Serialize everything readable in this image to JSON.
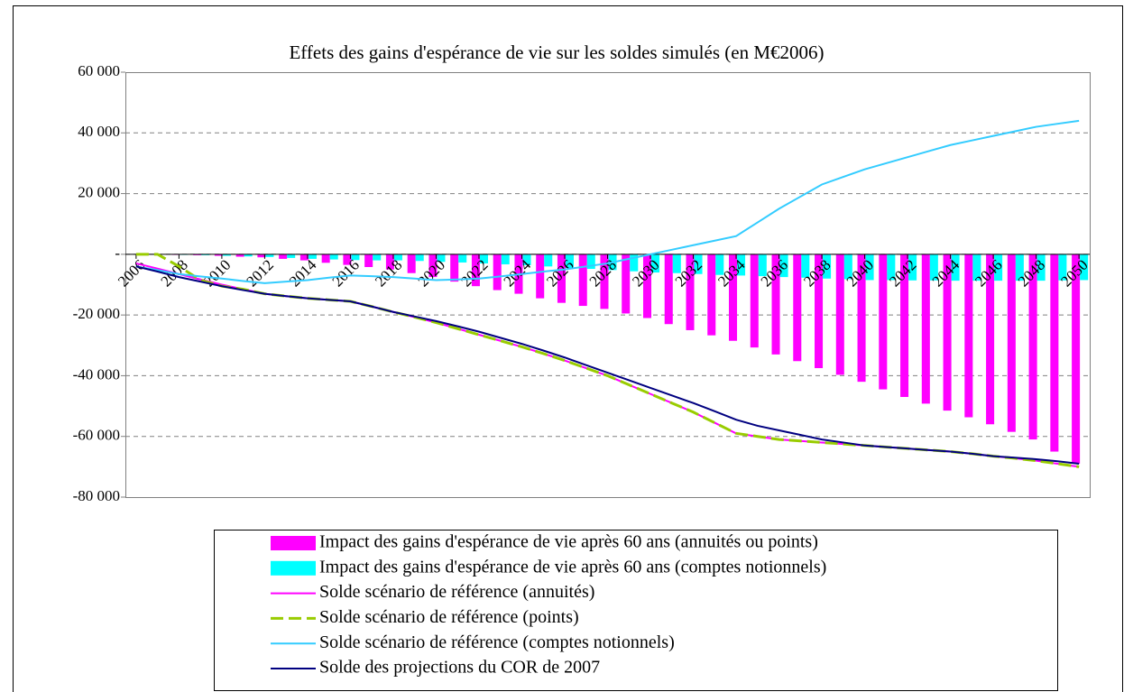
{
  "chart_data": {
    "type": "bar",
    "title": "Effets des gains d'espérance de vie sur les soldes simulés (en M€2006)",
    "categories": [
      "2006",
      null,
      "2008",
      null,
      "2010",
      null,
      "2012",
      null,
      "2014",
      null,
      "2016",
      null,
      "2018",
      null,
      "2020",
      null,
      "2022",
      null,
      "2024",
      null,
      "2026",
      null,
      "2028",
      null,
      "2030",
      null,
      "2032",
      null,
      "2034",
      null,
      "2036",
      null,
      "2038",
      null,
      "2040",
      null,
      "2042",
      null,
      "2044",
      null,
      "2046",
      null,
      "2048",
      null,
      "2050"
    ],
    "ylim": [
      -80000,
      60000
    ],
    "yticks": [
      {
        "value": -80000,
        "label": "-80 000"
      },
      {
        "value": -60000,
        "label": "-60 000"
      },
      {
        "value": -40000,
        "label": "-40 000"
      },
      {
        "value": -20000,
        "label": "-20 000"
      },
      {
        "value": 0,
        "label": "-"
      },
      {
        "value": 20000,
        "label": "20 000"
      },
      {
        "value": 40000,
        "label": "40 000"
      },
      {
        "value": 60000,
        "label": "60 000"
      }
    ],
    "grid": true,
    "series": [
      {
        "name": "Impact des gains d'espérance de vie après 60 ans (annuités ou points)",
        "type": "bar",
        "color": "#ff00ff",
        "values": [
          0,
          0,
          -200,
          -300,
          -500,
          -800,
          -1000,
          -1500,
          -2000,
          -2800,
          -3500,
          -4200,
          -5000,
          -6200,
          -7500,
          -9000,
          -10500,
          -11800,
          -13000,
          -14500,
          -16000,
          -17000,
          -18000,
          -19500,
          -21000,
          -23000,
          -25000,
          -26700,
          -28500,
          -30700,
          -33000,
          -35200,
          -37500,
          -39700,
          -42000,
          -44500,
          -47000,
          -49200,
          -51500,
          -53700,
          -56000,
          -58500,
          -61000,
          -65000,
          -69000
        ]
      },
      {
        "name": "Impact des gains d'espérance de vie après 60 ans (comptes notionnels)",
        "type": "bar",
        "color": "#00ffff",
        "values": [
          0,
          0,
          -200,
          -300,
          -500,
          -700,
          -900,
          -1200,
          -1500,
          -1700,
          -1900,
          -2000,
          -2000,
          -2200,
          -2500,
          -2700,
          -3000,
          -3300,
          -3600,
          -4000,
          -4500,
          -4800,
          -5200,
          -5600,
          -6000,
          -6200,
          -6500,
          -6800,
          -7000,
          -7200,
          -7500,
          -7700,
          -8000,
          -8200,
          -8500,
          -8500,
          -8600,
          -8600,
          -8700,
          -8700,
          -8700,
          -8700,
          -8700,
          -8600,
          -8500
        ]
      },
      {
        "name": "Solde scénario de référence (annuités)",
        "type": "line",
        "color": "#ff00ff",
        "dashed": false,
        "values": [
          -3000,
          -4700,
          -6500,
          -8300,
          -10000,
          -11500,
          -13000,
          -13800,
          -14500,
          -15000,
          -15500,
          -17200,
          -19000,
          -20700,
          -22500,
          -24500,
          -26500,
          -28500,
          -30500,
          -32700,
          -35000,
          -37500,
          -40000,
          -43000,
          -46000,
          -49000,
          -52000,
          -55500,
          -59000,
          -60000,
          -61000,
          -61500,
          -62000,
          -62500,
          -63000,
          -63500,
          -64000,
          -64500,
          -65000,
          -65700,
          -66500,
          -67200,
          -68000,
          -69000,
          -70000
        ]
      },
      {
        "name": "Solde scénario de référence (points)",
        "type": "line",
        "color": "#99cc00",
        "dashed": true,
        "values": [
          0,
          0,
          -4000,
          -8500,
          -10500,
          -11500,
          -13000,
          -13800,
          -14500,
          -15000,
          -15500,
          -17200,
          -19000,
          -20700,
          -22500,
          -24500,
          -26500,
          -28500,
          -30500,
          -32700,
          -35000,
          -37500,
          -40000,
          -43000,
          -46000,
          -49000,
          -52000,
          -55500,
          -59000,
          -60000,
          -61000,
          -61500,
          -62000,
          -62500,
          -63000,
          -63500,
          -64000,
          -64500,
          -65000,
          -65700,
          -66500,
          -67200,
          -68000,
          -69000,
          -70000
        ]
      },
      {
        "name": "Solde scénario de référence (comptes notionnels)",
        "type": "line",
        "color": "#33ccff",
        "dashed": false,
        "values": [
          -4000,
          -5200,
          -6500,
          -7300,
          -8000,
          -8800,
          -9500,
          -9000,
          -8500,
          -7700,
          -7000,
          -7200,
          -7500,
          -8000,
          -8500,
          -8300,
          -8000,
          -7300,
          -6500,
          -5700,
          -5000,
          -4000,
          -3000,
          -1500,
          0,
          1500,
          3000,
          4500,
          6000,
          10500,
          15000,
          19000,
          23000,
          25500,
          28000,
          30000,
          32000,
          34000,
          36000,
          37500,
          39000,
          40500,
          42000,
          43000,
          44000
        ]
      },
      {
        "name": "Solde des projections du COR de 2007",
        "type": "line",
        "color": "#000080",
        "dashed": false,
        "values": [
          -4000,
          -5700,
          -7500,
          -9000,
          -10500,
          -11800,
          -13000,
          -13800,
          -14500,
          -15000,
          -15500,
          -17200,
          -19000,
          -20500,
          -22000,
          -23700,
          -25500,
          -27500,
          -29500,
          -31700,
          -34000,
          -36500,
          -39000,
          -41500,
          -44000,
          -46500,
          -49000,
          -51700,
          -54500,
          -56500,
          -58000,
          -59500,
          -61000,
          -62000,
          -63000,
          -63500,
          -64000,
          -64500,
          -65000,
          -65700,
          -66500,
          -67000,
          -67500,
          -68200,
          -69000
        ]
      }
    ]
  }
}
